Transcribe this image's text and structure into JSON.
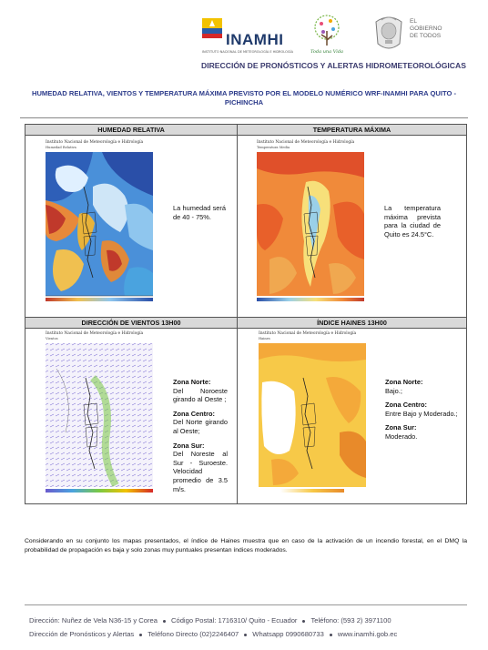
{
  "header": {
    "org_name": "INAMHI",
    "org_subtitle": "INSTITUTO NACIONAL DE METEOROLOGÍA E HIDROLOGÍA",
    "vida_logo_text": "Toda una Vida",
    "gov_line1": "EL",
    "gov_line2": "GOBIERNO",
    "gov_line3": "DE TODOS",
    "department": "DIRECCIÓN DE PRONÓSTICOS Y ALERTAS HIDROMETEOROLÓGICAS"
  },
  "report_title": "HUMEDAD RELATIVA, VIENTOS Y TEMPERATURA MÁXIMA PREVISTO POR EL MODELO NUMÉRICO WRF-INAMHI PARA QUITO - PICHINCHA",
  "panels": {
    "humidity": {
      "heading": "HUMEDAD RELATIVA",
      "map_caption": "Instituto Nacional de Meteorología e Hidrología",
      "map_subcaption": "Humedad Relativa",
      "text": "La humedad será de 40 - 75%."
    },
    "temperature": {
      "heading": "TEMPERATURA MÁXIMA",
      "map_caption": "Instituto Nacional de Meteorología e Hidrología",
      "map_subcaption": "Temperatura Media",
      "text": "La temperatura máxima prevista para la ciudad de Quito es 24.5°C."
    },
    "wind": {
      "heading": "DIRECCIÓN DE VIENTOS 13H00",
      "map_caption": "Instituto Nacional de Meteorología e Hidrología",
      "map_subcaption": "Vientos",
      "north_label": "Zona Norte:",
      "north_text": "Del Noroeste girando al Oeste ;",
      "center_label": "Zona Centro:",
      "center_text": "Del Norte girando al Oeste;",
      "south_label": "Zona Sur:",
      "south_text": "Del Noreste al Sur - Suroeste. Velocidad promedio de 3.5 m/s."
    },
    "haines": {
      "heading": "ÍNDICE HAINES 13H00",
      "map_caption": "Instituto Nacional de Meteorología e Hidrología",
      "map_subcaption": "Haines",
      "north_label": "Zona Norte:",
      "north_text": "Bajo.;",
      "center_label": "Zona Centro:",
      "center_text": "Entre Bajo y Moderado.;",
      "south_label": "Zona Sur:",
      "south_text": "Moderado."
    }
  },
  "summary": "Considerando en su conjunto los mapas presentados, el índice de Haines muestra que en caso de la activación de un incendio forestal, en el DMQ la probabilidad de propagación es baja y solo zonas muy puntuales presentan índices moderados.",
  "footer": {
    "address": "Dirección: Nuñez de Vela N36-15 y Corea",
    "postal": "Código Postal: 1716310/ Quito - Ecuador",
    "phone": "Teléfono: (593 2) 3971100",
    "department": "Dirección de Pronósticos y Alertas",
    "direct_phone": "Teléfono Directo (02)2246407",
    "whatsapp": "Whatsapp 0990680733",
    "web": "www.inamhi.gob.ec"
  },
  "colors": {
    "title_blue": "#2b3a8a",
    "department_text": "#3b3b6e",
    "header_bg": "#d9d9d9"
  }
}
